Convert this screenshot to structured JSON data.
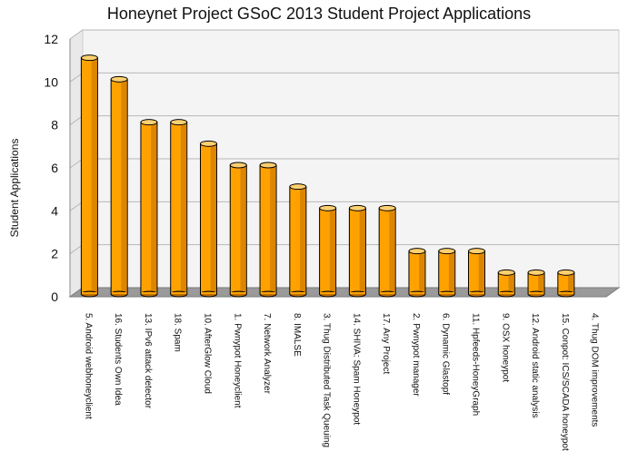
{
  "chart_data": {
    "type": "bar",
    "title": "Honeynet Project GSoC 2013 Student Project Applications",
    "xlabel": "",
    "ylabel": "Student Applications",
    "ylim": [
      0,
      12
    ],
    "yticks": [
      0,
      2,
      4,
      6,
      8,
      10,
      12
    ],
    "grid": true,
    "categories": [
      "5. Android webhoneyclient",
      "16. Students Own Idea",
      "13. IPv6 attack detector",
      "18. Spam",
      "10. AfterGlow Cloud",
      "1. Pwnypot Honeyclient",
      "7. Network Analyzer",
      "8. IMALSE",
      "3. Thug Distributed Task Queuing",
      "14. SHIVA: Spam Honeypot",
      "17. Any Project",
      "2. Pwnypot manager",
      "6. Dynamic Glastopf",
      "11. Hpfeeds-HoneyGraph",
      "9. OSX honeypot",
      "12. Android static analysis",
      "15. Conpot: ICS/SCADA honeypot",
      "4. Thug DOM improvements"
    ],
    "values": [
      11,
      10,
      8,
      8,
      7,
      6,
      6,
      5,
      4,
      4,
      4,
      2,
      2,
      2,
      1,
      1,
      1,
      0
    ],
    "colors": {
      "bar_fill": "#ffa200",
      "bar_dark": "#c07000",
      "bar_top": "#ffd070",
      "grid": "#b8b8b8",
      "back_wall": "#f4f4f4"
    }
  }
}
